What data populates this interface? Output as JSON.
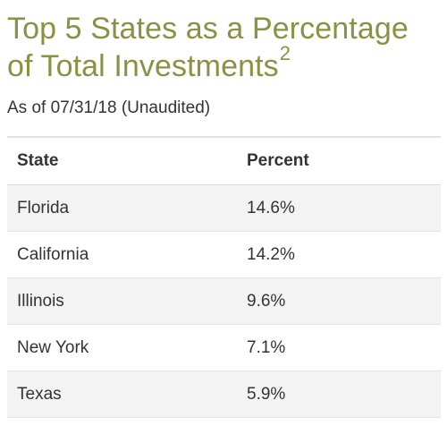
{
  "title": {
    "line1": "Top 5 States as a Percentage",
    "line2": "of Total Investments",
    "footnote_marker": "2"
  },
  "as_of": "As of 07/31/18 (Unaudited)",
  "table": {
    "headers": [
      "State",
      "Percent"
    ],
    "rows": [
      {
        "state": "Florida",
        "percent": "14.6%"
      },
      {
        "state": "California",
        "percent": "14.2%"
      },
      {
        "state": "Illinois",
        "percent": "9.6%"
      },
      {
        "state": "New York",
        "percent": "7.1%"
      },
      {
        "state": "Texas",
        "percent": "5.9%"
      }
    ]
  },
  "colors": {
    "title": "#8a9143",
    "text": "#333333",
    "row_shade": "#f3f3f3",
    "border": "#e2e2e2"
  }
}
